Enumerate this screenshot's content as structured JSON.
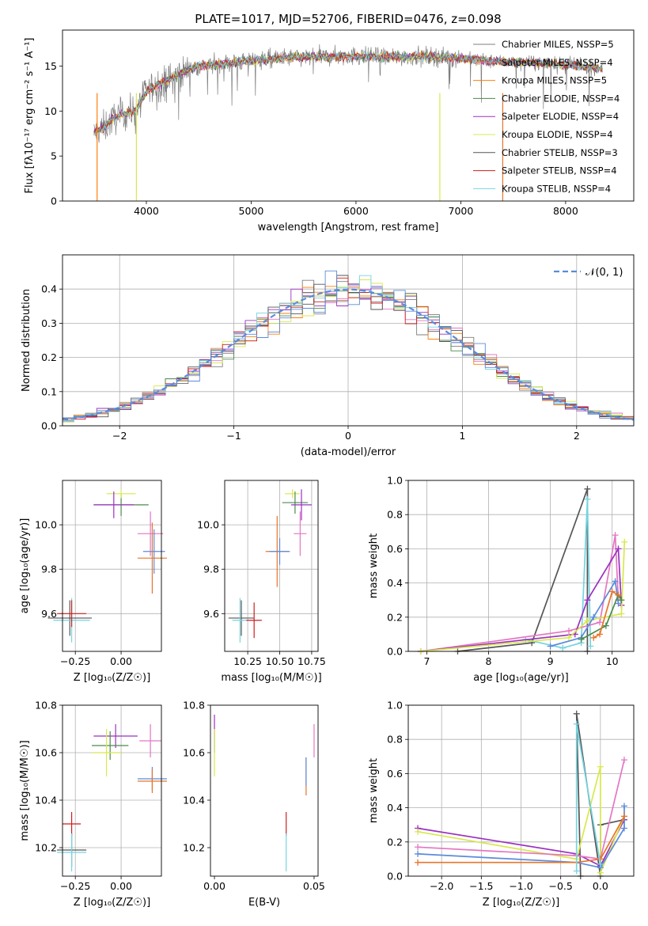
{
  "figure": {
    "title": "PLATE=1017, MJD=52706, FIBERID=0476, z=0.098"
  },
  "colors": {
    "Chabrier MILES": "#7f7f7f",
    "Salpeter MILES": "#e377c2",
    "Kroupa MILES": "#ff7f0e",
    "Chabrier ELODIE": "#4c8a4c",
    "Salpeter ELODIE": "#9b30c0",
    "Kroupa ELODIE": "#d8e84c",
    "Chabrier STELIB": "#555555",
    "Salpeter STELIB": "#cc1f1f",
    "Kroupa STELIB": "#76d4e0",
    "Extra blue": "#5b8bdc",
    "Extra orange": "#e8742a"
  },
  "chart_data": [
    {
      "id": "spectrum",
      "type": "line",
      "title": "PLATE=1017, MJD=52706, FIBERID=0476, z=0.098",
      "xlabel": "wavelength [Angstrom, rest frame]",
      "ylabel": "Flux [fλ10⁻¹⁷ erg cm⁻² s⁻¹ A⁻¹]",
      "xlim": [
        3200,
        8650
      ],
      "ylim": [
        0,
        19
      ],
      "xticks": [
        4000,
        5000,
        6000,
        7000,
        8000
      ],
      "yticks": [
        0,
        5,
        10,
        15
      ],
      "grid": false,
      "legend_position": "top-right",
      "legend": [
        "Chabrier MILES, NSSP=5",
        "Salpeter MILES, NSSP=4",
        "Kroupa MILES, NSSP=5",
        "Chabrier ELODIE, NSSP=4",
        "Salpeter ELODIE, NSSP=4",
        "Kroupa ELODIE, NSSP=4",
        "Chabrier STELIB, NSSP=3",
        "Salpeter STELIB, NSSP=4",
        "Kroupa STELIB, NSSP=4"
      ],
      "continuum": {
        "x": [
          3500,
          3600,
          3700,
          3800,
          3900,
          4000,
          4100,
          4200,
          4300,
          4400,
          4500,
          4700,
          5000,
          5300,
          5600,
          6000,
          6300,
          6600,
          7000,
          7300,
          7600,
          7900,
          8200,
          8350
        ],
        "y": [
          7.6,
          8.2,
          9.3,
          9.7,
          10.1,
          12.2,
          12.9,
          13.3,
          14.0,
          14.6,
          15.0,
          15.2,
          15.6,
          15.9,
          16.0,
          16.1,
          16.0,
          16.1,
          15.9,
          15.5,
          15.4,
          15.3,
          14.9,
          14.7
        ]
      }
    },
    {
      "id": "residuals",
      "type": "line",
      "xlabel": "(data-model)/error",
      "ylabel": "Normed distribution",
      "xlim": [
        -2.5,
        2.5
      ],
      "ylim": [
        0,
        0.5
      ],
      "xticks": [
        -2,
        -1,
        0,
        1,
        2
      ],
      "yticks": [
        0.0,
        0.1,
        0.2,
        0.3,
        0.4
      ],
      "grid": true,
      "legend_position": "top-right",
      "legend": [
        "𝒩(0, 1)"
      ]
    },
    {
      "id": "age-vs-Z",
      "type": "scatter",
      "xlabel": "Z [log₁₀(Z/Z☉)]",
      "ylabel": "age  [log₁₀(age/yr)]",
      "xlim": [
        -0.32,
        0.22
      ],
      "ylim": [
        9.43,
        10.2
      ],
      "xticks": [
        -0.25,
        0.0
      ],
      "yticks": [
        9.6,
        9.8,
        10.0
      ],
      "grid": true,
      "points": [
        {
          "x": -0.28,
          "y": 9.58,
          "xerr": 0.12,
          "yerr": 0.08,
          "color": "Chabrier STELIB"
        },
        {
          "x": -0.27,
          "y": 9.57,
          "xerr": 0.1,
          "yerr": 0.1,
          "color": "Kroupa STELIB"
        },
        {
          "x": -0.27,
          "y": 9.6,
          "xerr": 0.08,
          "yerr": 0.06,
          "color": "Salpeter STELIB"
        },
        {
          "x": 0.0,
          "y": 10.09,
          "xerr": 0.15,
          "yerr": 0.05,
          "color": "Chabrier ELODIE"
        },
        {
          "x": 0.0,
          "y": 10.14,
          "xerr": 0.08,
          "yerr": 0.02,
          "color": "Kroupa ELODIE"
        },
        {
          "x": -0.04,
          "y": 10.09,
          "xerr": 0.11,
          "yerr": 0.06,
          "color": "Salpeter ELODIE"
        },
        {
          "x": 0.16,
          "y": 9.96,
          "xerr": 0.07,
          "yerr": 0.1,
          "color": "Salpeter MILES"
        },
        {
          "x": 0.18,
          "y": 9.88,
          "xerr": 0.06,
          "yerr": 0.1,
          "color": "Extra blue"
        },
        {
          "x": 0.17,
          "y": 9.85,
          "xerr": 0.08,
          "yerr": 0.16,
          "color": "Extra orange"
        }
      ]
    },
    {
      "id": "age-vs-mass",
      "type": "scatter",
      "xlabel": "mass [log₁₀(M/M☉)]",
      "ylabel": "",
      "xlim": [
        10.07,
        10.8
      ],
      "ylim": [
        9.43,
        10.2
      ],
      "xticks": [
        10.25,
        10.5,
        10.75
      ],
      "yticks": [
        9.6,
        9.8,
        10.0
      ],
      "grid": true,
      "points": [
        {
          "x": 10.2,
          "y": 9.58,
          "xerr": 0.1,
          "yerr": 0.08,
          "color": "Chabrier STELIB"
        },
        {
          "x": 10.19,
          "y": 9.57,
          "xerr": 0.06,
          "yerr": 0.1,
          "color": "Kroupa STELIB"
        },
        {
          "x": 10.3,
          "y": 9.57,
          "xerr": 0.06,
          "yerr": 0.08,
          "color": "Salpeter STELIB"
        },
        {
          "x": 10.6,
          "y": 10.14,
          "xerr": 0.06,
          "yerr": 0.02,
          "color": "Kroupa ELODIE"
        },
        {
          "x": 10.62,
          "y": 10.1,
          "xerr": 0.1,
          "yerr": 0.05,
          "color": "Chabrier ELODIE"
        },
        {
          "x": 10.67,
          "y": 10.09,
          "xerr": 0.08,
          "yerr": 0.07,
          "color": "Salpeter ELODIE"
        },
        {
          "x": 10.66,
          "y": 9.96,
          "xerr": 0.05,
          "yerr": 0.1,
          "color": "Salpeter MILES"
        },
        {
          "x": 10.48,
          "y": 9.88,
          "xerr": 0.09,
          "yerr": 0.16,
          "color": "Extra orange"
        },
        {
          "x": 10.5,
          "y": 9.88,
          "xerr": 0.08,
          "yerr": 0.06,
          "color": "Extra blue"
        }
      ]
    },
    {
      "id": "weight-vs-age",
      "type": "line",
      "xlabel": "age  [log₁₀(age/yr)]",
      "ylabel": "mass weight",
      "xlim": [
        6.7,
        10.35
      ],
      "ylim": [
        0,
        1.0
      ],
      "xticks": [
        7,
        8,
        9,
        10
      ],
      "yticks": [
        0.0,
        0.2,
        0.4,
        0.6,
        0.8,
        1.0
      ],
      "grid": true,
      "series": [
        {
          "color": "Chabrier STELIB",
          "x": [
            7.5,
            8.7,
            9.6,
            9.6
          ],
          "y": [
            0.0,
            0.05,
            0.95,
            0.0
          ]
        },
        {
          "color": "Kroupa STELIB",
          "x": [
            8.6,
            9.2,
            9.5,
            9.6,
            9.65
          ],
          "y": [
            0.07,
            0.02,
            0.05,
            0.89,
            0.03
          ]
        },
        {
          "color": "Salpeter MILES",
          "x": [
            6.9,
            9.3,
            9.8,
            10.05,
            10.1
          ],
          "y": [
            0.0,
            0.12,
            0.17,
            0.68,
            0.3
          ]
        },
        {
          "color": "Salpeter ELODIE",
          "x": [
            6.9,
            9.4,
            9.6,
            10.1,
            10.15
          ],
          "y": [
            0.0,
            0.1,
            0.3,
            0.6,
            0.27
          ]
        },
        {
          "color": "Kroupa ELODIE",
          "x": [
            6.9,
            9.3,
            9.6,
            10.15,
            10.2
          ],
          "y": [
            0.0,
            0.08,
            0.18,
            0.22,
            0.64
          ]
        },
        {
          "color": "Extra blue",
          "x": [
            9.0,
            9.5,
            9.7,
            10.05,
            10.1
          ],
          "y": [
            0.03,
            0.08,
            0.2,
            0.41,
            0.28
          ]
        },
        {
          "color": "Chabrier ELODIE",
          "x": [
            9.5,
            9.9,
            10.1,
            10.15
          ],
          "y": [
            0.07,
            0.15,
            0.33,
            0.3
          ]
        },
        {
          "color": "Extra orange",
          "x": [
            9.7,
            9.8,
            10.0,
            10.1
          ],
          "y": [
            0.08,
            0.1,
            0.35,
            0.33
          ]
        }
      ]
    },
    {
      "id": "mass-vs-Z",
      "type": "scatter",
      "xlabel": "Z [log₁₀(Z/Z☉)]",
      "ylabel": "mass [log₁₀(M/M☉)]",
      "xlim": [
        -0.32,
        0.22
      ],
      "ylim": [
        10.08,
        10.8
      ],
      "xticks": [
        -0.25,
        0.0
      ],
      "yticks": [
        10.2,
        10.4,
        10.6,
        10.8
      ],
      "grid": true,
      "points": [
        {
          "x": -0.27,
          "y": 10.3,
          "xerr": 0.05,
          "yerr": 0.05,
          "color": "Salpeter STELIB"
        },
        {
          "x": -0.27,
          "y": 10.19,
          "xerr": 0.08,
          "yerr": 0.07,
          "color": "Chabrier STELIB"
        },
        {
          "x": -0.27,
          "y": 10.18,
          "xerr": 0.08,
          "yerr": 0.08,
          "color": "Kroupa STELIB"
        },
        {
          "x": -0.03,
          "y": 10.67,
          "xerr": 0.12,
          "yerr": 0.05,
          "color": "Salpeter ELODIE"
        },
        {
          "x": -0.06,
          "y": 10.63,
          "xerr": 0.1,
          "yerr": 0.06,
          "color": "Chabrier ELODIE"
        },
        {
          "x": -0.08,
          "y": 10.6,
          "xerr": 0.08,
          "yerr": 0.1,
          "color": "Kroupa ELODIE"
        },
        {
          "x": 0.16,
          "y": 10.65,
          "xerr": 0.06,
          "yerr": 0.07,
          "color": "Salpeter MILES"
        },
        {
          "x": 0.17,
          "y": 10.49,
          "xerr": 0.08,
          "yerr": 0.05,
          "color": "Extra blue"
        },
        {
          "x": 0.17,
          "y": 10.48,
          "xerr": 0.08,
          "yerr": 0.05,
          "color": "Extra orange"
        }
      ]
    },
    {
      "id": "mass-vs-ebv",
      "type": "scatter",
      "xlabel": "E(B-V)",
      "ylabel": "",
      "xlim": [
        -0.002,
        0.052
      ],
      "ylim": [
        10.08,
        10.8
      ],
      "xticks": [
        0.0,
        0.05
      ],
      "yticks": [
        10.2,
        10.4,
        10.6,
        10.8
      ],
      "grid": false,
      "points": [
        {
          "x": 0.0,
          "y": 10.68,
          "xerr": 0,
          "yerr": 0.08,
          "color": "Salpeter ELODIE"
        },
        {
          "x": 0.0,
          "y": 10.6,
          "xerr": 0,
          "yerr": 0.1,
          "color": "Kroupa ELODIE"
        },
        {
          "x": 0.036,
          "y": 10.3,
          "xerr": 0,
          "yerr": 0.05,
          "color": "Salpeter STELIB"
        },
        {
          "x": 0.036,
          "y": 10.18,
          "xerr": 0,
          "yerr": 0.08,
          "color": "Kroupa STELIB"
        },
        {
          "x": 0.046,
          "y": 10.5,
          "xerr": 0,
          "yerr": 0.08,
          "color": "Extra orange"
        },
        {
          "x": 0.046,
          "y": 10.52,
          "xerr": 0,
          "yerr": 0.06,
          "color": "Extra blue"
        },
        {
          "x": 0.05,
          "y": 10.65,
          "xerr": 0,
          "yerr": 0.07,
          "color": "Salpeter MILES"
        }
      ]
    },
    {
      "id": "weight-vs-Z",
      "type": "line",
      "xlabel": "Z [log₁₀(Z/Z☉)]",
      "ylabel": "mass weight",
      "xlim": [
        -2.42,
        0.42
      ],
      "ylim": [
        0,
        1.0
      ],
      "xticks": [
        -2.0,
        -1.5,
        -1.0,
        -0.5,
        0.0
      ],
      "yticks": [
        0.0,
        0.2,
        0.4,
        0.6,
        0.8,
        1.0
      ],
      "grid": true,
      "series": [
        {
          "color": "Chabrier STELIB",
          "x": [
            -0.25,
            -0.3,
            0.0,
            0.0,
            0.3
          ],
          "y": [
            0.0,
            0.95,
            0.0,
            0.3,
            0.33
          ]
        },
        {
          "color": "Salpeter ELODIE",
          "x": [
            -2.3,
            -0.3,
            0.0,
            0.3
          ],
          "y": [
            0.28,
            0.13,
            0.06,
            0.33
          ]
        },
        {
          "color": "Kroupa ELODIE",
          "x": [
            -2.3,
            -0.3,
            0.0,
            0.0,
            0.3
          ],
          "y": [
            0.26,
            0.1,
            0.64,
            0.02,
            0.35
          ]
        },
        {
          "color": "Salpeter MILES",
          "x": [
            -2.3,
            -0.3,
            0.0,
            0.3
          ],
          "y": [
            0.17,
            0.12,
            0.1,
            0.68
          ]
        },
        {
          "color": "Extra blue",
          "x": [
            -2.3,
            -0.3,
            0.0,
            0.3,
            0.3
          ],
          "y": [
            0.13,
            0.08,
            0.05,
            0.28,
            0.41
          ]
        },
        {
          "color": "Extra orange",
          "x": [
            -2.3,
            -0.3,
            0.0,
            0.3
          ],
          "y": [
            0.08,
            0.08,
            0.1,
            0.35
          ]
        },
        {
          "color": "Kroupa STELIB",
          "x": [
            -0.3,
            -0.3,
            0.0
          ],
          "y": [
            0.03,
            0.89,
            0.07
          ]
        }
      ]
    }
  ]
}
